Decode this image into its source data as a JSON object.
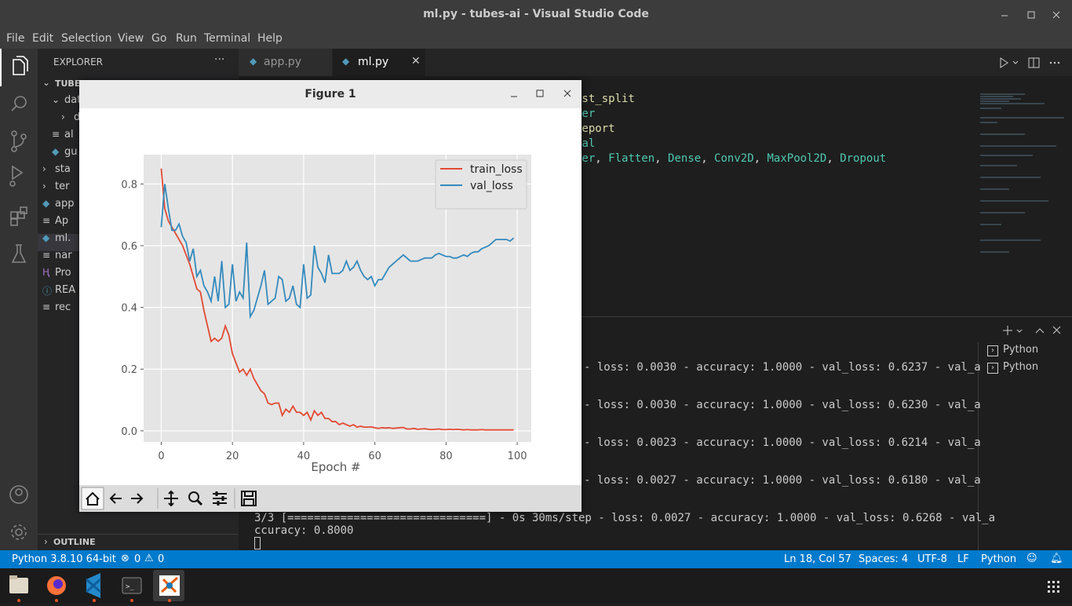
{
  "window": {
    "title": "ml.py - tubes-ai - Visual Studio Code"
  },
  "menu": [
    "File",
    "Edit",
    "Selection",
    "View",
    "Go",
    "Run",
    "Terminal",
    "Help"
  ],
  "sidebar": {
    "header": "EXPLORER",
    "tree": [
      "TUBE",
      "dat",
      "da",
      "al",
      "gu",
      "sta",
      "ter",
      "app",
      "Ap",
      "ml.",
      "nar",
      "Pro",
      "REA",
      "rec"
    ],
    "outline": "OUTLINE"
  },
  "tabs": [
    "app.py",
    "ml.py"
  ],
  "editor": {
    "lines": [
      [
        {
          "text": "est_split",
          "color": "#dcdcaa"
        }
      ],
      [
        {
          "text": "ler",
          "color": "#4ec9b0"
        }
      ],
      [
        {
          "text": "report",
          "color": "#dcdcaa"
        }
      ],
      [
        {
          "text": ".al",
          "color": "#4ec9b0"
        }
      ],
      [
        {
          "text": "yer",
          "color": "#4ec9b0"
        },
        {
          "text": ", ",
          "color": "#d4d4d4"
        },
        {
          "text": "Flatten",
          "color": "#4ec9b0"
        },
        {
          "text": ", ",
          "color": "#d4d4d4"
        },
        {
          "text": "Dense",
          "color": "#4ec9b0"
        },
        {
          "text": ", ",
          "color": "#d4d4d4"
        },
        {
          "text": "Conv2D",
          "color": "#4ec9b0"
        },
        {
          "text": ", ",
          "color": "#d4d4d4"
        },
        {
          "text": "MaxPool2D",
          "color": "#4ec9b0"
        },
        {
          "text": ", ",
          "color": "#d4d4d4"
        },
        {
          "text": "Dropout",
          "color": "#4ec9b0"
        }
      ],
      [
        {
          "text": "n",
          "color": "#4ec9b0"
        }
      ]
    ]
  },
  "panel": {
    "terminal": [
      "- loss: 0.0030 - accuracy: 1.0000 - val_loss: 0.6237 - val_a",
      "- loss: 0.0030 - accuracy: 1.0000 - val_loss: 0.6230 - val_a",
      "- loss: 0.0023 - accuracy: 1.0000 - val_loss: 0.6214 - val_a",
      "- loss: 0.0027 - accuracy: 1.0000 - val_loss: 0.6180 - val_a",
      "3/3 [==============================] - 0s 30ms/step - loss: 0.0027 - accuracy: 1.0000 - val_loss: 0.6268 - val_a",
      "ccuracy: 0.8000"
    ],
    "terminals": [
      "Python",
      "Python"
    ]
  },
  "status": {
    "interpreter": "Python 3.8.10 64-bit",
    "errors": "0",
    "warnings": "0",
    "position": "Ln 18, Col 57",
    "spaces": "Spaces: 4",
    "encoding": "UTF-8",
    "eol": "LF",
    "language": "Python"
  },
  "figure": {
    "title": "Figure 1"
  },
  "chart_data": {
    "type": "line",
    "xlabel": "Epoch #",
    "x": [
      0,
      1,
      2,
      3,
      4,
      5,
      6,
      7,
      8,
      9,
      10,
      11,
      12,
      13,
      14,
      15,
      16,
      17,
      18,
      19,
      20,
      21,
      22,
      23,
      24,
      25,
      26,
      27,
      28,
      29,
      30,
      31,
      32,
      33,
      34,
      35,
      36,
      37,
      38,
      39,
      40,
      41,
      42,
      43,
      44,
      45,
      46,
      47,
      48,
      49,
      50,
      51,
      52,
      53,
      54,
      55,
      56,
      57,
      58,
      59,
      60,
      61,
      62,
      63,
      64,
      65,
      66,
      67,
      68,
      69,
      70,
      71,
      72,
      73,
      74,
      75,
      76,
      77,
      78,
      79,
      80,
      81,
      82,
      83,
      84,
      85,
      86,
      87,
      88,
      89,
      90,
      91,
      92,
      93,
      94,
      95,
      96,
      97,
      98,
      99
    ],
    "series": [
      {
        "name": "train_loss",
        "color": "#e24a33",
        "values": [
          0.85,
          0.72,
          0.68,
          0.66,
          0.64,
          0.62,
          0.6,
          0.57,
          0.54,
          0.5,
          0.46,
          0.45,
          0.39,
          0.34,
          0.29,
          0.3,
          0.29,
          0.3,
          0.34,
          0.31,
          0.25,
          0.22,
          0.19,
          0.2,
          0.18,
          0.2,
          0.17,
          0.15,
          0.13,
          0.12,
          0.09,
          0.085,
          0.09,
          0.09,
          0.05,
          0.07,
          0.06,
          0.08,
          0.06,
          0.06,
          0.05,
          0.06,
          0.035,
          0.065,
          0.05,
          0.06,
          0.04,
          0.04,
          0.03,
          0.03,
          0.02,
          0.025,
          0.02,
          0.015,
          0.02,
          0.012,
          0.015,
          0.012,
          0.012,
          0.013,
          0.01,
          0.008,
          0.01,
          0.009,
          0.01,
          0.008,
          0.009,
          0.01,
          0.011,
          0.006,
          0.006,
          0.008,
          0.005,
          0.006,
          0.007,
          0.005,
          0.004,
          0.005,
          0.006,
          0.004,
          0.004,
          0.005,
          0.004,
          0.005,
          0.004,
          0.003,
          0.004,
          0.003,
          0.003,
          0.003,
          0.004,
          0.003,
          0.003,
          0.003,
          0.003,
          0.003,
          0.003,
          0.003,
          0.003,
          0.003
        ]
      },
      {
        "name": "val_loss",
        "color": "#348abd",
        "values": [
          0.66,
          0.8,
          0.72,
          0.65,
          0.65,
          0.67,
          0.63,
          0.61,
          0.55,
          0.59,
          0.5,
          0.52,
          0.47,
          0.45,
          0.42,
          0.5,
          0.42,
          0.55,
          0.4,
          0.41,
          0.54,
          0.42,
          0.45,
          0.43,
          0.61,
          0.37,
          0.39,
          0.43,
          0.47,
          0.52,
          0.41,
          0.42,
          0.43,
          0.5,
          0.49,
          0.42,
          0.43,
          0.47,
          0.41,
          0.4,
          0.54,
          0.43,
          0.44,
          0.6,
          0.53,
          0.51,
          0.48,
          0.57,
          0.51,
          0.51,
          0.51,
          0.52,
          0.55,
          0.52,
          0.53,
          0.55,
          0.52,
          0.5,
          0.49,
          0.5,
          0.47,
          0.49,
          0.49,
          0.51,
          0.53,
          0.54,
          0.55,
          0.56,
          0.57,
          0.56,
          0.55,
          0.55,
          0.55,
          0.555,
          0.56,
          0.56,
          0.56,
          0.57,
          0.575,
          0.57,
          0.565,
          0.565,
          0.56,
          0.56,
          0.565,
          0.57,
          0.565,
          0.575,
          0.58,
          0.58,
          0.59,
          0.595,
          0.6,
          0.61,
          0.62,
          0.62,
          0.62,
          0.62,
          0.615,
          0.625
        ]
      }
    ],
    "xlim": [
      -4.95,
      103.95
    ],
    "ylim": [
      -0.036,
      0.895
    ],
    "xticks": [
      0,
      20,
      40,
      60,
      80,
      100
    ],
    "yticks": [
      {
        "value": 0,
        "label": "0.0"
      },
      0.2,
      0.4,
      0.6,
      0.8
    ],
    "grid": true,
    "legend": "upper-right"
  }
}
